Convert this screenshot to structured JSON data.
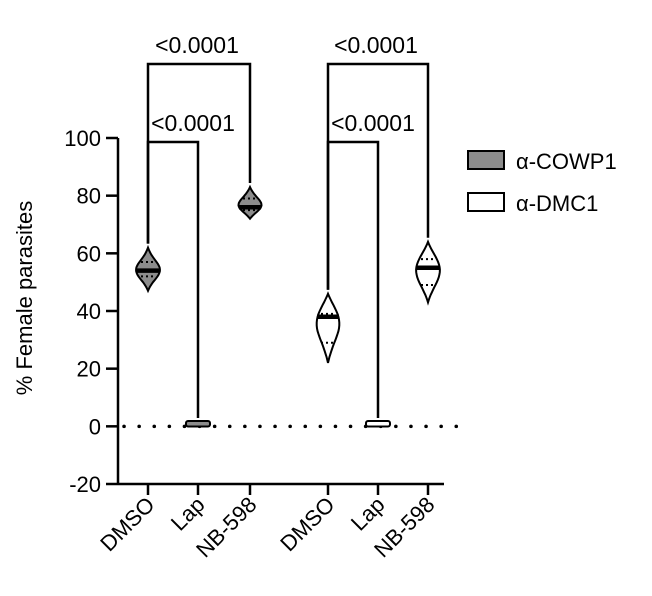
{
  "chart_data": {
    "type": "violin",
    "ylabel": "% Female parasites",
    "ylim": [
      -20,
      100
    ],
    "yticks": [
      -20,
      0,
      20,
      40,
      60,
      80,
      100
    ],
    "categories": [
      "DMSO",
      "Lap",
      "NB-598",
      "DMSO",
      "Lap",
      "NB-598"
    ],
    "reference_line": {
      "y": 0,
      "style": "dotted"
    },
    "series": [
      {
        "name": "α-COWP1",
        "fill": "#8c8c8c",
        "groups": [
          {
            "category": "DMSO",
            "min": 47,
            "max": 62,
            "median": 54,
            "q1": 52,
            "q3": 57
          },
          {
            "category": "Lap",
            "min": 0.3,
            "max": 1.5,
            "median": 0.8,
            "q1": 0.6,
            "q3": 1.0
          },
          {
            "category": "NB-598",
            "min": 72,
            "max": 83,
            "median": 76,
            "q1": 75,
            "q3": 79
          }
        ]
      },
      {
        "name": "α-DMC1",
        "fill": "#ffffff",
        "groups": [
          {
            "category": "DMSO",
            "min": 22,
            "max": 46,
            "median": 38,
            "q1": 29,
            "q3": 39
          },
          {
            "category": "Lap",
            "min": 0.3,
            "max": 1.5,
            "median": 0.8,
            "q1": 0.6,
            "q3": 1.0
          },
          {
            "category": "NB-598",
            "min": 43,
            "max": 64,
            "median": 55,
            "q1": 49,
            "q3": 58
          }
        ]
      }
    ],
    "comparisons": [
      {
        "from": 0,
        "to": 1,
        "label": "<0.0001"
      },
      {
        "from": 0,
        "to": 2,
        "label": "<0.0001"
      },
      {
        "from": 3,
        "to": 4,
        "label": "<0.0001"
      },
      {
        "from": 3,
        "to": 5,
        "label": "<0.0001"
      }
    ],
    "legend": [
      {
        "label": "α-COWP1",
        "fill": "#8c8c8c"
      },
      {
        "label": "α-DMC1",
        "fill": "#ffffff"
      }
    ],
    "legend_position": "right"
  }
}
